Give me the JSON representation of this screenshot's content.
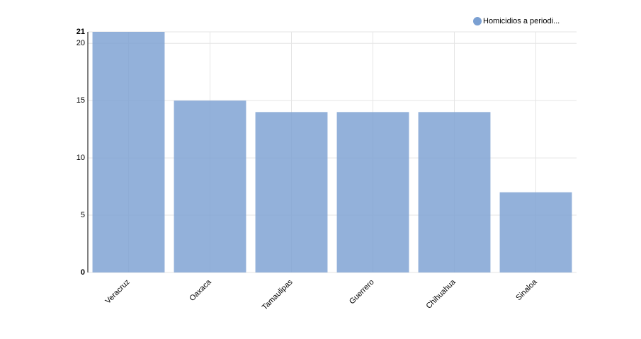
{
  "chart_data": {
    "type": "bar",
    "categories": [
      "Veracruz",
      "Oaxaca",
      "Tamaulipas",
      "Guerrero",
      "Chihuahua",
      "Sinaloa"
    ],
    "series": [
      {
        "name": "Homicidios a periodi...",
        "color": "#7ba0d2",
        "values": [
          21,
          15,
          14,
          14,
          14,
          7
        ]
      }
    ],
    "ylim": [
      0,
      21
    ],
    "yticks": [
      0,
      5,
      10,
      15,
      20,
      21
    ],
    "grid": true,
    "legend": "top-right"
  }
}
